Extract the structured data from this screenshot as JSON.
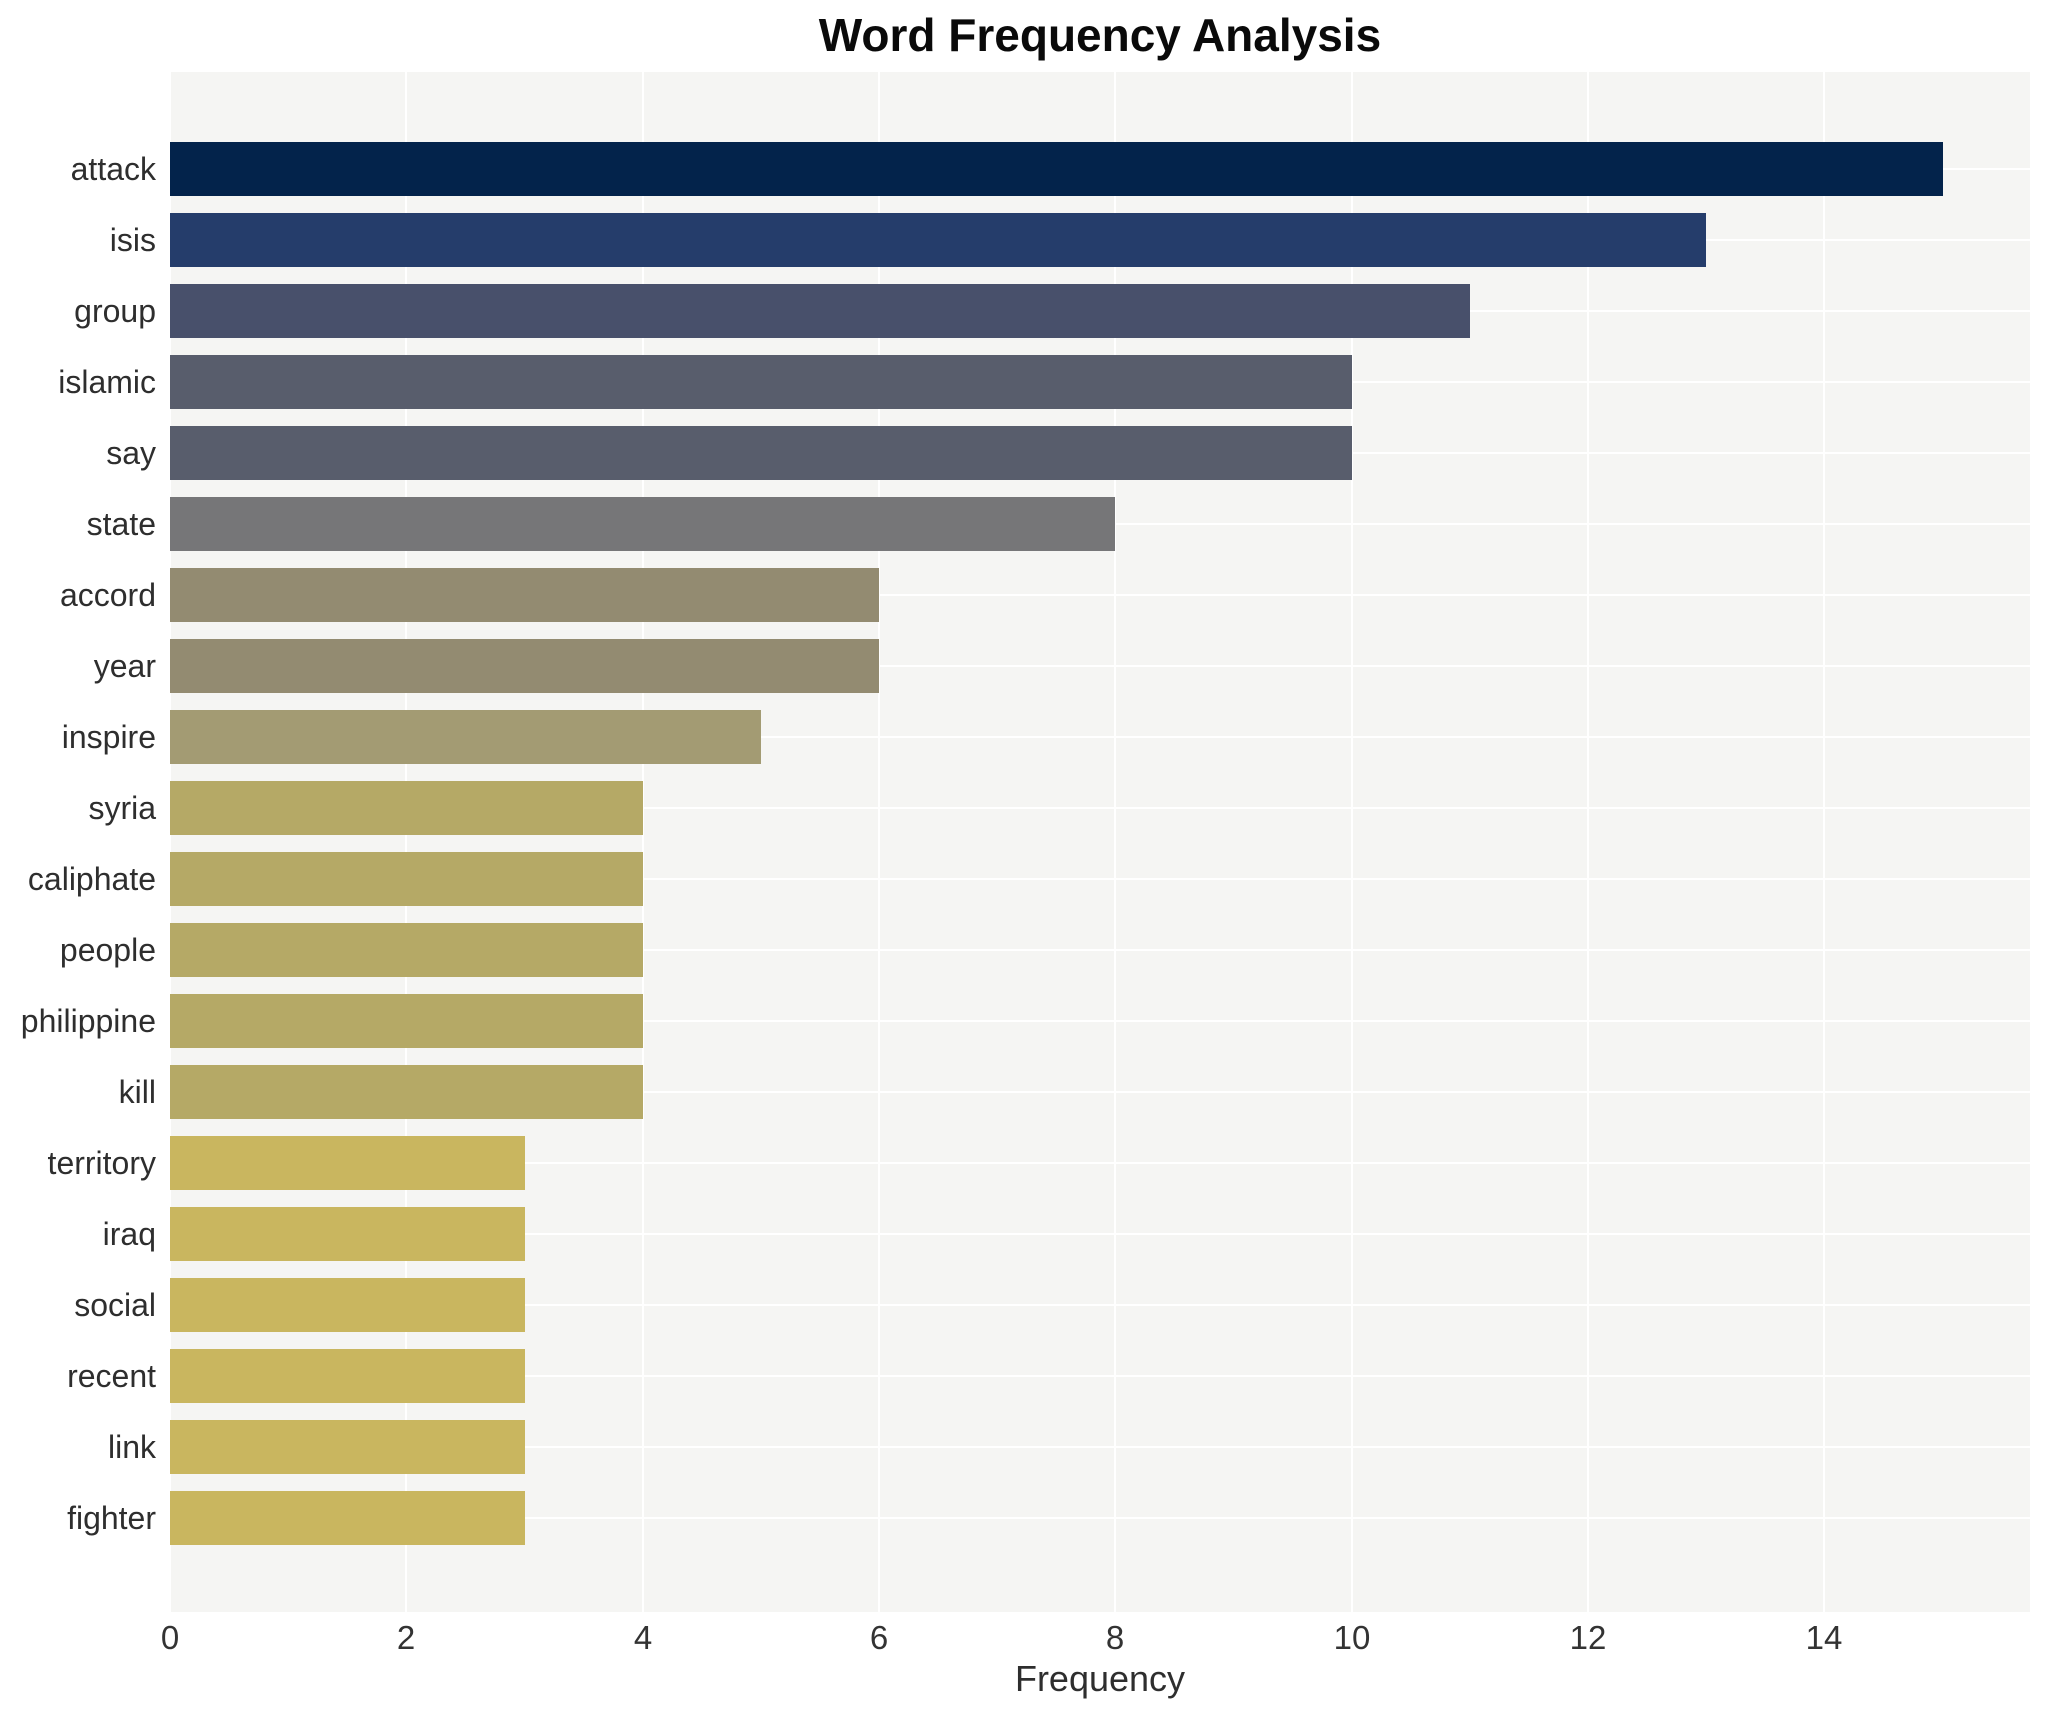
{
  "chart": {
    "title": "Word Frequency Analysis",
    "xlabel": "Frequency"
  },
  "chart_data": {
    "type": "bar",
    "orientation": "horizontal",
    "title": "Word Frequency Analysis",
    "xlabel": "Frequency",
    "ylabel": "",
    "categories": [
      "attack",
      "isis",
      "group",
      "islamic",
      "say",
      "state",
      "accord",
      "year",
      "inspire",
      "syria",
      "caliphate",
      "people",
      "philippine",
      "kill",
      "territory",
      "iraq",
      "social",
      "recent",
      "link",
      "fighter"
    ],
    "values": [
      15,
      13,
      11,
      10,
      10,
      8,
      6,
      6,
      5,
      4,
      4,
      4,
      4,
      4,
      3,
      3,
      3,
      3,
      3,
      3
    ],
    "bar_colors": [
      "#03234b",
      "#253d6b",
      "#48506b",
      "#585d6c",
      "#585d6c",
      "#767678",
      "#938b71",
      "#938b71",
      "#a39b73",
      "#b5a966",
      "#b5a966",
      "#b5a966",
      "#b5a966",
      "#b5a966",
      "#c9b65f",
      "#c9b65f",
      "#c9b65f",
      "#c9b65f",
      "#c9b65f",
      "#c9b65f"
    ],
    "xlim": [
      0,
      15.74
    ],
    "xticks": [
      0,
      2,
      4,
      6,
      8,
      10,
      12,
      14
    ],
    "grid": true,
    "gridline_color": "#ffffff",
    "plot_background": "#f5f5f3",
    "legend": false
  }
}
